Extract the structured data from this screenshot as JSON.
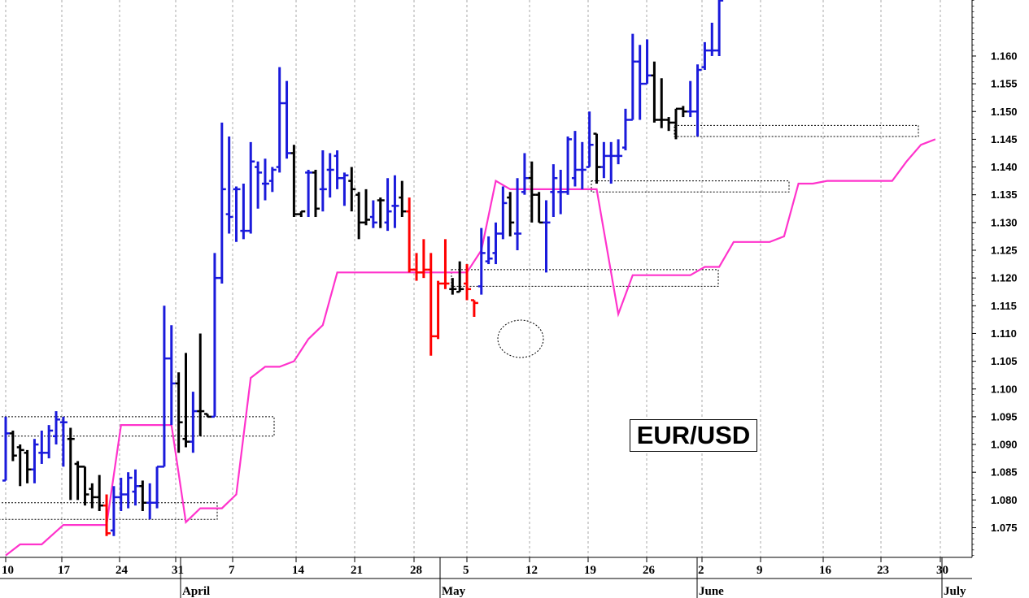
{
  "chart_data": {
    "type": "ohlc",
    "title": "EUR/USD",
    "ylim": [
      1.069,
      1.172
    ],
    "y_ticks": [
      "1.075",
      "1.080",
      "1.085",
      "1.090",
      "1.095",
      "1.100",
      "1.105",
      "1.110",
      "1.115",
      "1.120",
      "1.125",
      "1.130",
      "1.135",
      "1.140",
      "1.145",
      "1.150",
      "1.155",
      "1.160"
    ],
    "x_ticks": [
      "10",
      "17",
      "24",
      "31",
      "7",
      "14",
      "21",
      "28",
      "5",
      "12",
      "19",
      "26",
      "2",
      "9",
      "16",
      "23",
      "30"
    ],
    "months": [
      "April",
      "May",
      "June",
      "July"
    ],
    "grid": "vertical-dotted",
    "colors": {
      "up": "#1a1adb",
      "down": "#000000",
      "alert": "#ff0000",
      "stop_line": "#ff33cc"
    },
    "bars": [
      {
        "o": 1.0835,
        "h": 1.095,
        "l": 1.0835,
        "c": 1.092,
        "col": "up"
      },
      {
        "o": 1.092,
        "h": 1.0925,
        "l": 1.087,
        "c": 1.088,
        "col": "down"
      },
      {
        "o": 1.0895,
        "h": 1.09,
        "l": 1.0825,
        "c": 1.089,
        "col": "down"
      },
      {
        "o": 1.0885,
        "h": 1.089,
        "l": 1.083,
        "c": 1.0855,
        "col": "down"
      },
      {
        "o": 1.0855,
        "h": 1.091,
        "l": 1.083,
        "c": 1.09,
        "col": "up"
      },
      {
        "o": 1.0885,
        "h": 1.0925,
        "l": 1.0865,
        "c": 1.0885,
        "col": "up"
      },
      {
        "o": 1.0885,
        "h": 1.0935,
        "l": 1.0875,
        "c": 1.0925,
        "col": "up"
      },
      {
        "o": 1.0915,
        "h": 1.096,
        "l": 1.09,
        "c": 1.0945,
        "col": "up"
      },
      {
        "o": 1.094,
        "h": 1.095,
        "l": 1.086,
        "c": 1.094,
        "col": "up"
      },
      {
        "o": 1.091,
        "h": 1.093,
        "l": 1.08,
        "c": 1.091,
        "col": "down"
      },
      {
        "o": 1.0865,
        "h": 1.087,
        "l": 1.08,
        "c": 1.086,
        "col": "down"
      },
      {
        "o": 1.086,
        "h": 1.086,
        "l": 1.079,
        "c": 1.081,
        "col": "down"
      },
      {
        "o": 1.082,
        "h": 1.083,
        "l": 1.0785,
        "c": 1.0805,
        "col": "down"
      },
      {
        "o": 1.0805,
        "h": 1.0845,
        "l": 1.078,
        "c": 1.079,
        "col": "down"
      },
      {
        "o": 1.079,
        "h": 1.081,
        "l": 1.0735,
        "c": 1.074,
        "col": "alert"
      },
      {
        "o": 1.0745,
        "h": 1.0825,
        "l": 1.0735,
        "c": 1.0805,
        "col": "up"
      },
      {
        "o": 1.0805,
        "h": 1.084,
        "l": 1.078,
        "c": 1.081,
        "col": "up"
      },
      {
        "o": 1.081,
        "h": 1.085,
        "l": 1.0785,
        "c": 1.084,
        "col": "up"
      },
      {
        "o": 1.0815,
        "h": 1.0855,
        "l": 1.079,
        "c": 1.0825,
        "col": "up"
      },
      {
        "o": 1.0825,
        "h": 1.0835,
        "l": 1.078,
        "c": 1.0795,
        "col": "down"
      },
      {
        "o": 1.0795,
        "h": 1.083,
        "l": 1.0765,
        "c": 1.0795,
        "col": "up"
      },
      {
        "o": 1.0795,
        "h": 1.086,
        "l": 1.0785,
        "c": 1.086,
        "col": "up"
      },
      {
        "o": 1.086,
        "h": 1.115,
        "l": 1.086,
        "c": 1.1055,
        "col": "up"
      },
      {
        "o": 1.1055,
        "h": 1.1115,
        "l": 1.0935,
        "c": 1.101,
        "col": "up"
      },
      {
        "o": 1.101,
        "h": 1.103,
        "l": 1.0885,
        "c": 1.094,
        "col": "down"
      },
      {
        "o": 1.091,
        "h": 1.1065,
        "l": 1.0895,
        "c": 1.0905,
        "col": "down"
      },
      {
        "o": 1.0905,
        "h": 1.0995,
        "l": 1.0885,
        "c": 1.096,
        "col": "up"
      },
      {
        "o": 1.096,
        "h": 1.11,
        "l": 1.0915,
        "c": 1.096,
        "col": "down"
      },
      {
        "o": 1.0955,
        "h": 1.0955,
        "l": 1.095,
        "c": 1.095,
        "col": "down"
      },
      {
        "o": 1.095,
        "h": 1.1245,
        "l": 1.095,
        "c": 1.12,
        "col": "up"
      },
      {
        "o": 1.12,
        "h": 1.148,
        "l": 1.119,
        "c": 1.136,
        "col": "up"
      },
      {
        "o": 1.1315,
        "h": 1.1455,
        "l": 1.128,
        "c": 1.131,
        "col": "up"
      },
      {
        "o": 1.136,
        "h": 1.1365,
        "l": 1.1265,
        "c": 1.136,
        "col": "up"
      },
      {
        "o": 1.1285,
        "h": 1.137,
        "l": 1.127,
        "c": 1.1285,
        "col": "up"
      },
      {
        "o": 1.1285,
        "h": 1.1445,
        "l": 1.128,
        "c": 1.141,
        "col": "up"
      },
      {
        "o": 1.14,
        "h": 1.141,
        "l": 1.1325,
        "c": 1.139,
        "col": "up"
      },
      {
        "o": 1.137,
        "h": 1.1415,
        "l": 1.134,
        "c": 1.137,
        "col": "up"
      },
      {
        "o": 1.1375,
        "h": 1.14,
        "l": 1.1355,
        "c": 1.1395,
        "col": "up"
      },
      {
        "o": 1.14,
        "h": 1.158,
        "l": 1.139,
        "c": 1.1515,
        "col": "up"
      },
      {
        "o": 1.1515,
        "h": 1.1555,
        "l": 1.1415,
        "c": 1.1425,
        "col": "up"
      },
      {
        "o": 1.1425,
        "h": 1.144,
        "l": 1.131,
        "c": 1.1315,
        "col": "down"
      },
      {
        "o": 1.1315,
        "h": 1.132,
        "l": 1.131,
        "c": 1.132,
        "col": "down"
      },
      {
        "o": 1.139,
        "h": 1.1395,
        "l": 1.131,
        "c": 1.139,
        "col": "up"
      },
      {
        "o": 1.139,
        "h": 1.1395,
        "l": 1.131,
        "c": 1.1325,
        "col": "down"
      },
      {
        "o": 1.136,
        "h": 1.143,
        "l": 1.132,
        "c": 1.136,
        "col": "up"
      },
      {
        "o": 1.1395,
        "h": 1.1425,
        "l": 1.1345,
        "c": 1.1395,
        "col": "up"
      },
      {
        "o": 1.142,
        "h": 1.143,
        "l": 1.136,
        "c": 1.138,
        "col": "up"
      },
      {
        "o": 1.138,
        "h": 1.139,
        "l": 1.133,
        "c": 1.1385,
        "col": "up"
      },
      {
        "o": 1.1375,
        "h": 1.14,
        "l": 1.132,
        "c": 1.136,
        "col": "down"
      },
      {
        "o": 1.135,
        "h": 1.1355,
        "l": 1.127,
        "c": 1.13,
        "col": "down"
      },
      {
        "o": 1.13,
        "h": 1.136,
        "l": 1.1295,
        "c": 1.1305,
        "col": "down"
      },
      {
        "o": 1.131,
        "h": 1.134,
        "l": 1.129,
        "c": 1.13,
        "col": "up"
      },
      {
        "o": 1.134,
        "h": 1.1345,
        "l": 1.129,
        "c": 1.134,
        "col": "down"
      },
      {
        "o": 1.13,
        "h": 1.138,
        "l": 1.1285,
        "c": 1.132,
        "col": "up"
      },
      {
        "o": 1.133,
        "h": 1.1385,
        "l": 1.129,
        "c": 1.133,
        "col": "up"
      },
      {
        "o": 1.1345,
        "h": 1.1375,
        "l": 1.131,
        "c": 1.132,
        "col": "down"
      },
      {
        "o": 1.132,
        "h": 1.1345,
        "l": 1.121,
        "c": 1.1215,
        "col": "alert"
      },
      {
        "o": 1.1215,
        "h": 1.1245,
        "l": 1.1195,
        "c": 1.121,
        "col": "alert"
      },
      {
        "o": 1.121,
        "h": 1.127,
        "l": 1.12,
        "c": 1.1215,
        "col": "alert"
      },
      {
        "o": 1.1215,
        "h": 1.1245,
        "l": 1.106,
        "c": 1.1095,
        "col": "alert"
      },
      {
        "o": 1.1095,
        "h": 1.1195,
        "l": 1.109,
        "c": 1.119,
        "col": "alert"
      },
      {
        "o": 1.119,
        "h": 1.127,
        "l": 1.118,
        "c": 1.119,
        "col": "alert"
      },
      {
        "o": 1.118,
        "h": 1.12,
        "l": 1.117,
        "c": 1.118,
        "col": "down"
      },
      {
        "o": 1.1175,
        "h": 1.123,
        "l": 1.1175,
        "c": 1.118,
        "col": "down"
      },
      {
        "o": 1.119,
        "h": 1.1225,
        "l": 1.116,
        "c": 1.118,
        "col": "alert"
      },
      {
        "o": 1.116,
        "h": 1.116,
        "l": 1.113,
        "c": 1.1155,
        "col": "alert"
      },
      {
        "o": 1.1185,
        "h": 1.129,
        "l": 1.117,
        "c": 1.1245,
        "col": "up"
      },
      {
        "o": 1.123,
        "h": 1.1275,
        "l": 1.1225,
        "c": 1.1235,
        "col": "up"
      },
      {
        "o": 1.1245,
        "h": 1.13,
        "l": 1.1225,
        "c": 1.128,
        "col": "up"
      },
      {
        "o": 1.128,
        "h": 1.1365,
        "l": 1.127,
        "c": 1.1335,
        "col": "up"
      },
      {
        "o": 1.1345,
        "h": 1.1355,
        "l": 1.1275,
        "c": 1.13,
        "col": "down"
      },
      {
        "o": 1.128,
        "h": 1.138,
        "l": 1.125,
        "c": 1.128,
        "col": "up"
      },
      {
        "o": 1.1355,
        "h": 1.1425,
        "l": 1.135,
        "c": 1.138,
        "col": "up"
      },
      {
        "o": 1.138,
        "h": 1.141,
        "l": 1.13,
        "c": 1.135,
        "col": "down"
      },
      {
        "o": 1.135,
        "h": 1.1355,
        "l": 1.13,
        "c": 1.13,
        "col": "down"
      },
      {
        "o": 1.13,
        "h": 1.134,
        "l": 1.121,
        "c": 1.13,
        "col": "up"
      },
      {
        "o": 1.1355,
        "h": 1.1405,
        "l": 1.131,
        "c": 1.138,
        "col": "up"
      },
      {
        "o": 1.1355,
        "h": 1.1395,
        "l": 1.1315,
        "c": 1.1355,
        "col": "up"
      },
      {
        "o": 1.1355,
        "h": 1.1455,
        "l": 1.135,
        "c": 1.145,
        "col": "up"
      },
      {
        "o": 1.138,
        "h": 1.1465,
        "l": 1.1365,
        "c": 1.1395,
        "col": "up"
      },
      {
        "o": 1.1395,
        "h": 1.1445,
        "l": 1.136,
        "c": 1.1395,
        "col": "up"
      },
      {
        "o": 1.14,
        "h": 1.15,
        "l": 1.14,
        "c": 1.144,
        "col": "up"
      },
      {
        "o": 1.146,
        "h": 1.146,
        "l": 1.137,
        "c": 1.14,
        "col": "down"
      },
      {
        "o": 1.14,
        "h": 1.1445,
        "l": 1.138,
        "c": 1.142,
        "col": "up"
      },
      {
        "o": 1.142,
        "h": 1.1445,
        "l": 1.137,
        "c": 1.142,
        "col": "up"
      },
      {
        "o": 1.142,
        "h": 1.145,
        "l": 1.1405,
        "c": 1.142,
        "col": "up"
      },
      {
        "o": 1.1435,
        "h": 1.1505,
        "l": 1.143,
        "c": 1.1485,
        "col": "up"
      },
      {
        "o": 1.1485,
        "h": 1.164,
        "l": 1.1485,
        "c": 1.159,
        "col": "up"
      },
      {
        "o": 1.159,
        "h": 1.162,
        "l": 1.1485,
        "c": 1.155,
        "col": "up"
      },
      {
        "o": 1.155,
        "h": 1.163,
        "l": 1.155,
        "c": 1.1565,
        "col": "up"
      },
      {
        "o": 1.1565,
        "h": 1.159,
        "l": 1.148,
        "c": 1.1485,
        "col": "down"
      },
      {
        "o": 1.1485,
        "h": 1.156,
        "l": 1.147,
        "c": 1.1485,
        "col": "down"
      },
      {
        "o": 1.1485,
        "h": 1.149,
        "l": 1.1465,
        "c": 1.148,
        "col": "down"
      },
      {
        "o": 1.148,
        "h": 1.1505,
        "l": 1.145,
        "c": 1.1505,
        "col": "down"
      },
      {
        "o": 1.1505,
        "h": 1.151,
        "l": 1.149,
        "c": 1.15,
        "col": "down"
      },
      {
        "o": 1.15,
        "h": 1.1555,
        "l": 1.149,
        "c": 1.15,
        "col": "up"
      },
      {
        "o": 1.15,
        "h": 1.1585,
        "l": 1.1455,
        "c": 1.1575,
        "col": "up"
      },
      {
        "o": 1.158,
        "h": 1.1625,
        "l": 1.1575,
        "c": 1.161,
        "col": "up"
      },
      {
        "o": 1.161,
        "h": 1.166,
        "l": 1.16,
        "c": 1.161,
        "col": "up"
      },
      {
        "o": 1.161,
        "h": 1.1705,
        "l": 1.16,
        "c": 1.17,
        "col": "up"
      }
    ],
    "stop_line": [
      [
        0,
        1.07
      ],
      [
        2,
        1.072
      ],
      [
        5,
        1.072
      ],
      [
        8,
        1.0755
      ],
      [
        14,
        1.0755
      ],
      [
        16,
        1.0935
      ],
      [
        23,
        1.0935
      ],
      [
        25,
        1.076
      ],
      [
        27,
        1.0785
      ],
      [
        30,
        1.0785
      ],
      [
        32,
        1.081
      ],
      [
        34,
        1.102
      ],
      [
        36,
        1.104
      ],
      [
        38,
        1.104
      ],
      [
        40,
        1.105
      ],
      [
        42,
        1.109
      ],
      [
        44,
        1.1115
      ],
      [
        46,
        1.121
      ],
      [
        64,
        1.121
      ],
      [
        66,
        1.125
      ],
      [
        68,
        1.1375
      ],
      [
        70,
        1.136
      ],
      [
        82,
        1.136
      ],
      [
        85,
        1.1135
      ],
      [
        87,
        1.1205
      ],
      [
        95,
        1.1205
      ],
      [
        97,
        1.122
      ],
      [
        99,
        1.122
      ],
      [
        101,
        1.1265
      ],
      [
        106,
        1.1265
      ],
      [
        108,
        1.1275
      ],
      [
        110,
        1.137
      ],
      [
        112,
        1.137
      ],
      [
        114,
        1.1375
      ],
      [
        123,
        1.1375
      ],
      [
        125,
        1.141
      ],
      [
        127,
        1.144
      ],
      [
        129,
        1.145
      ]
    ]
  }
}
